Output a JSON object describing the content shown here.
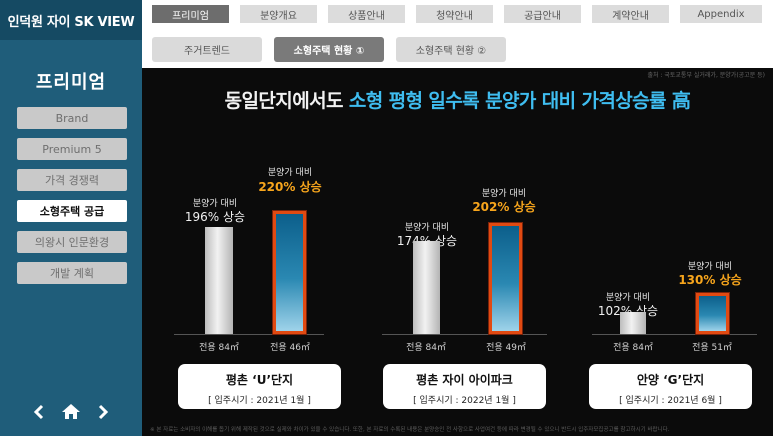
{
  "app": {
    "title": "인덕원 자이 SK VIEW"
  },
  "sidebar": {
    "section_title": "프리미엄",
    "items": [
      {
        "label": "Brand",
        "active": false
      },
      {
        "label": "Premium 5",
        "active": false
      },
      {
        "label": "가격 경쟁력",
        "active": false
      },
      {
        "label": "소형주택 공급",
        "active": true
      },
      {
        "label": "의왕시 인문환경",
        "active": false
      },
      {
        "label": "개발 계획",
        "active": false
      }
    ],
    "nav_icons": [
      "chevron-left-icon",
      "home-icon",
      "chevron-right-icon"
    ]
  },
  "top_tabs": [
    {
      "label": "프리미엄",
      "active": true
    },
    {
      "label": "분양개요",
      "active": false
    },
    {
      "label": "상품안내",
      "active": false
    },
    {
      "label": "청약안내",
      "active": false
    },
    {
      "label": "공급안내",
      "active": false
    },
    {
      "label": "계약안내",
      "active": false
    },
    {
      "label": "Appendix",
      "active": false
    }
  ],
  "sub_tabs": [
    {
      "label": "주거트렌드",
      "active": false
    },
    {
      "label": "소형주택 현황 ①",
      "active": true
    },
    {
      "label": "소형주택 현황 ②",
      "active": false
    }
  ],
  "panel": {
    "source": "출처 : 국토교통부 실거래가, 분양가(공고문 등)",
    "headline_plain": "동일단지에서도 ",
    "headline_highlight": "소형 평형 일수록 분양가 대비 가격상승률 高",
    "colors": {
      "background": "#0b0b0b",
      "highlight": "#3fbdf0",
      "orange": "#f7a51c",
      "bar_border": "#e14a12"
    },
    "complexes": [
      {
        "name": "평촌 ‘U’단지",
        "move_in": "[ 입주시기 : 2021년 1월 ]",
        "bars": [
          {
            "area": "전용 84㎡",
            "label_small": "분양가 대비",
            "label_big": "196% 상승",
            "percent": 196,
            "highlight": false
          },
          {
            "area": "전용 46㎡",
            "label_small": "분양가 대비",
            "label_big": "220% 상승",
            "percent": 220,
            "highlight": true
          }
        ]
      },
      {
        "name": "평촌 자이 아이파크",
        "move_in": "[ 입주시기 : 2022년 1월 ]",
        "bars": [
          {
            "area": "전용 84㎡",
            "label_small": "분양가 대비",
            "label_big": "174% 상승",
            "percent": 174,
            "highlight": false
          },
          {
            "area": "전용 49㎡",
            "label_small": "분양가 대비",
            "label_big": "202% 상승",
            "percent": 202,
            "highlight": true
          }
        ]
      },
      {
        "name": "안양 ‘G’단지",
        "move_in": "[ 입주시기 : 2021년 6월 ]",
        "bars": [
          {
            "area": "전용 84㎡",
            "label_small": "분양가 대비",
            "label_big": "102% 상승",
            "percent": 102,
            "highlight": false
          },
          {
            "area": "전용 51㎡",
            "label_small": "분양가 대비",
            "label_big": "130% 상승",
            "percent": 130,
            "highlight": true
          }
        ]
      }
    ],
    "footnote": "※ 본 자료는 소비자의 이해를 돕기 위해 제작된 것으로 실제와 차이가 있을 수 있습니다. 또한, 본 자료의 수록된 내용은 분양승인 전 사항으로 사업여건 등에 따라 변경될 수 있으니 반드시 입주자모집공고를 참고하시기 바랍니다."
  }
}
